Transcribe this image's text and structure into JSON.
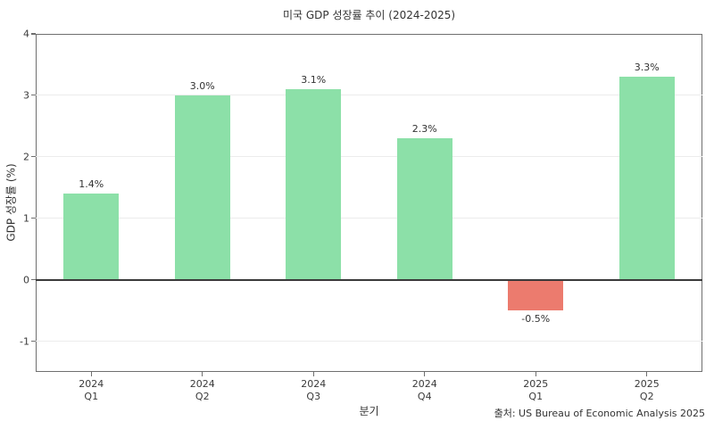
{
  "title": "미국 GDP 성장률 추이 (2024-2025)",
  "source_note": "출처: US Bureau of Economic Analysis 2025",
  "chart_data": {
    "type": "bar",
    "title": "미국 GDP 성장률 추이 (2024-2025)",
    "categories": [
      "2024 Q1",
      "2024 Q2",
      "2024 Q3",
      "2024 Q4",
      "2025 Q1",
      "2025 Q2"
    ],
    "values": [
      1.4,
      3.0,
      3.1,
      2.3,
      -0.5,
      3.3
    ],
    "value_labels": [
      "1.4%",
      "3.0%",
      "3.1%",
      "2.3%",
      "-0.5%",
      "3.3%"
    ],
    "xlabel": "분기",
    "ylabel": "GDP 성장률 (%)",
    "ylim": [
      -1.5,
      4
    ],
    "yticks": [
      -1,
      0,
      1,
      2,
      3,
      4
    ],
    "grid": true,
    "legend": "none",
    "annotation": "출처: US Bureau of Economic Analysis 2025"
  },
  "colors": {
    "bar_positive": "#8ce0a8",
    "bar_negative": "#ec7b6e",
    "spine": "#6f6f6f",
    "zero_line": "#3a3a3a",
    "grid": "#ececec",
    "text": "#333333",
    "background": "#ffffff"
  }
}
